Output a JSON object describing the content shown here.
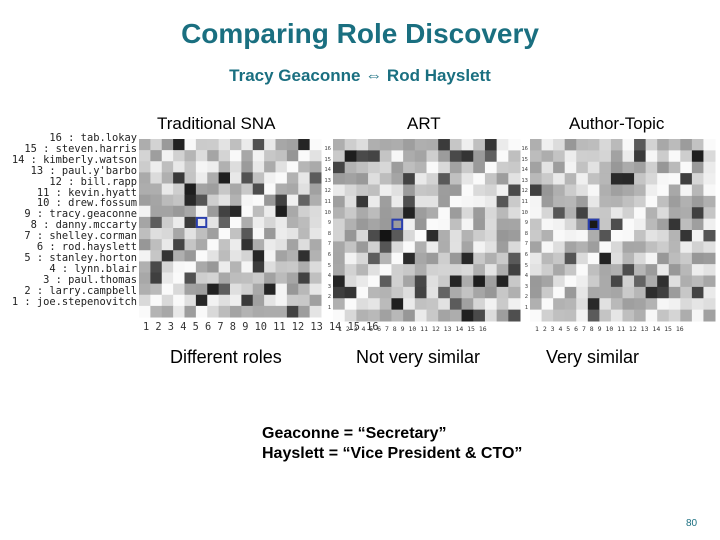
{
  "slide": {
    "title": "Comparing Role Discovery",
    "subtitle": "Tracy Geaconne ⇔ Rod Hayslett",
    "page_number": "80"
  },
  "panels": [
    {
      "label": "Traditional SNA",
      "caption": "Different roles"
    },
    {
      "label": "ART",
      "caption": "Not very similar"
    },
    {
      "label": "Author-Topic",
      "caption": "Very similar"
    }
  ],
  "sna_names": [
    "16 : tab.lokay",
    "15 : steven.harris",
    "14 : kimberly.watson",
    "13 : paul.y'barbo",
    "12 : bill.rapp",
    "11 : kevin.hyatt",
    "10 : drew.fossum",
    "9 : tracy.geaconne",
    "8 : danny.mccarty",
    "7 : shelley.corman",
    "6 : rod.hayslett",
    "5 : stanley.horton",
    "4 : lynn.blair",
    "3 : paul.thomas",
    "2 : larry.campbell",
    "1 : joe.stepenovitch"
  ],
  "sna_xticks": "1 2 3 4 5 6 7 8 9 10 11 12 13 14 15 16",
  "small_yticks": [
    "16",
    "15",
    "14",
    "13",
    "12",
    "11",
    "10",
    "9",
    "8",
    "7",
    "6",
    "5",
    "4",
    "3",
    "2",
    "1"
  ],
  "small_xticks": "1 2 3 4 5 6 7 8 9 10 11 12 13 14 15 16",
  "notes": [
    "Geaconne = “Secretary”",
    "Hayslett = “Vice President & CTO”"
  ],
  "colors": {
    "title": "#1a6f80",
    "highlight_box": "#2a3fae"
  }
}
